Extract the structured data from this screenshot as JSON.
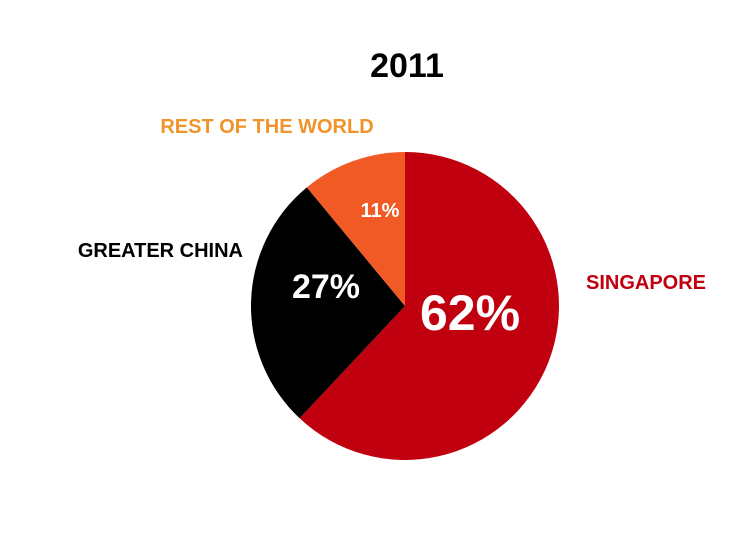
{
  "chart_data": {
    "type": "pie",
    "title": "2011",
    "slices": [
      {
        "label": "SINGAPORE",
        "value": 62,
        "value_label": "62%",
        "color": "#c0000e",
        "label_color": "#c0000e"
      },
      {
        "label": "GREATER CHINA",
        "value": 27,
        "value_label": "27%",
        "color": "#000000",
        "label_color": "#000000"
      },
      {
        "label": "REST OF THE WORLD",
        "value": 11,
        "value_label": "11%",
        "color": "#f15a24",
        "label_color": "#f0932a"
      }
    ],
    "start": "12 o'clock",
    "direction": "clockwise",
    "legend": "none"
  }
}
